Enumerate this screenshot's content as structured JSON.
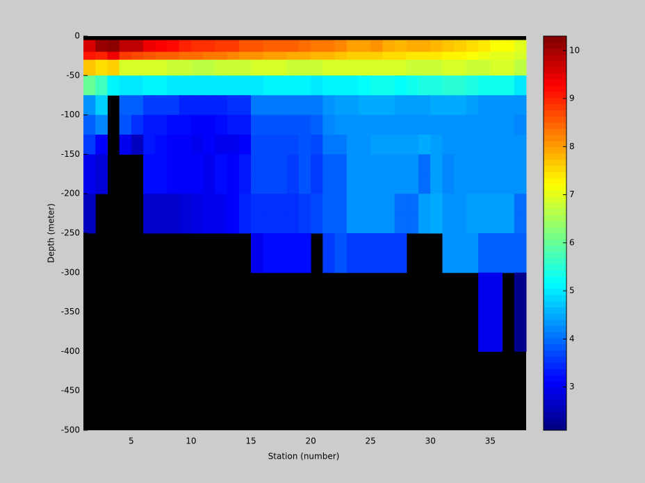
{
  "chart_data": {
    "type": "heatmap",
    "colormap": "jet",
    "xlabel": "Station (number)",
    "ylabel": "Depth (meter)",
    "x": [
      1,
      2,
      3,
      4,
      5,
      6,
      7,
      8,
      9,
      10,
      11,
      12,
      13,
      14,
      15,
      16,
      17,
      18,
      19,
      20,
      21,
      22,
      23,
      24,
      25,
      26,
      27,
      28,
      29,
      30,
      31,
      32,
      33,
      34,
      35,
      36,
      37,
      38
    ],
    "y": [
      0,
      -5,
      -20,
      -30,
      -50,
      -75,
      -100,
      -125,
      -150,
      -175,
      -200,
      -225,
      -250,
      -300,
      -400,
      -500
    ],
    "xlim": [
      1,
      38
    ],
    "ylim": [
      -500,
      0
    ],
    "xticks": [
      5,
      10,
      15,
      20,
      25,
      30,
      35
    ],
    "yticks": [
      0,
      -50,
      -100,
      -150,
      -200,
      -250,
      -300,
      -350,
      -400,
      -450,
      -500
    ],
    "clim": [
      2.1,
      10.3
    ],
    "cticks": [
      3,
      4,
      5,
      6,
      7,
      8,
      9,
      10
    ],
    "z": [
      [
        null,
        null,
        null,
        null,
        null,
        null,
        null,
        null,
        null,
        null,
        null,
        null,
        null,
        null,
        null,
        null,
        null,
        null,
        null,
        null,
        null,
        null,
        null,
        null,
        null,
        null,
        null,
        null,
        null,
        null,
        null,
        null,
        null,
        null,
        null,
        null,
        null
      ],
      [
        9.6,
        10.1,
        10.2,
        9.8,
        9.8,
        9.4,
        9.3,
        9.2,
        9.0,
        8.9,
        8.9,
        8.8,
        8.8,
        8.6,
        8.6,
        8.5,
        8.5,
        8.5,
        8.4,
        8.3,
        8.3,
        8.2,
        8.0,
        8.0,
        8.1,
        7.9,
        7.8,
        7.9,
        7.9,
        7.8,
        7.7,
        7.6,
        7.5,
        7.4,
        7.2,
        7.2,
        7.0
      ],
      [
        9.1,
        9.0,
        9.4,
        8.8,
        8.7,
        8.6,
        8.5,
        8.5,
        8.4,
        8.4,
        8.3,
        8.3,
        8.2,
        8.1,
        8.1,
        8.0,
        8.0,
        7.9,
        7.9,
        7.8,
        7.8,
        7.7,
        7.6,
        7.6,
        7.6,
        7.5,
        7.5,
        7.4,
        7.4,
        7.4,
        7.3,
        7.3,
        7.2,
        7.1,
        7.0,
        7.0,
        6.9
      ],
      [
        7.7,
        7.5,
        7.6,
        6.9,
        6.9,
        6.9,
        6.9,
        6.8,
        6.8,
        6.7,
        6.7,
        6.8,
        6.8,
        6.8,
        6.9,
        6.9,
        6.9,
        6.8,
        6.8,
        6.8,
        6.9,
        6.9,
        6.9,
        6.9,
        6.9,
        6.9,
        6.9,
        6.8,
        6.8,
        6.8,
        6.9,
        6.9,
        6.8,
        6.8,
        6.9,
        6.9,
        6.7
      ],
      [
        6.0,
        5.7,
        5.1,
        5.0,
        5.0,
        5.1,
        5.1,
        5.0,
        5.0,
        5.0,
        5.0,
        5.0,
        5.0,
        5.0,
        5.0,
        5.1,
        5.1,
        5.1,
        5.1,
        5.0,
        5.1,
        5.1,
        5.1,
        5.2,
        5.3,
        5.3,
        5.2,
        5.3,
        5.4,
        5.4,
        5.5,
        5.5,
        5.4,
        5.3,
        5.3,
        5.3,
        5.0
      ],
      [
        4.3,
        4.8,
        null,
        3.9,
        3.9,
        3.6,
        3.6,
        3.6,
        3.4,
        3.4,
        3.4,
        3.4,
        3.5,
        3.5,
        4.1,
        4.1,
        4.1,
        4.1,
        4.1,
        4.1,
        4.3,
        4.4,
        4.4,
        4.5,
        4.5,
        4.5,
        4.4,
        4.4,
        4.4,
        4.5,
        4.5,
        4.5,
        4.4,
        4.3,
        4.3,
        4.3,
        4.3
      ],
      [
        3.9,
        4.2,
        null,
        3.8,
        3.5,
        3.3,
        3.3,
        3.2,
        3.2,
        3.1,
        3.1,
        3.2,
        3.3,
        3.3,
        3.8,
        3.8,
        3.8,
        3.8,
        3.8,
        3.9,
        4.2,
        4.3,
        4.3,
        4.3,
        4.3,
        4.3,
        4.3,
        4.3,
        4.3,
        4.3,
        4.3,
        4.3,
        4.3,
        4.3,
        4.3,
        4.3,
        4.2
      ],
      [
        3.6,
        3.1,
        null,
        3.0,
        2.6,
        3.3,
        3.2,
        3.1,
        3.1,
        3.0,
        3.1,
        3.0,
        3.0,
        3.1,
        3.7,
        3.7,
        3.7,
        3.7,
        3.8,
        3.7,
        4.1,
        4.1,
        4.3,
        4.3,
        4.4,
        4.4,
        4.4,
        4.4,
        4.5,
        4.4,
        4.3,
        4.3,
        4.3,
        4.3,
        4.3,
        4.3,
        4.3
      ],
      [
        3.0,
        2.8,
        null,
        null,
        null,
        3.2,
        3.2,
        3.1,
        3.1,
        3.1,
        3.0,
        3.2,
        3.1,
        3.3,
        3.7,
        3.7,
        3.7,
        3.6,
        3.8,
        3.6,
        3.9,
        3.9,
        4.3,
        4.3,
        4.3,
        4.3,
        4.3,
        4.3,
        4.0,
        4.4,
        4.2,
        4.3,
        4.3,
        4.3,
        4.3,
        4.3,
        4.3
      ],
      [
        3.0,
        2.8,
        null,
        null,
        null,
        3.2,
        3.2,
        3.1,
        3.1,
        3.1,
        3.0,
        3.2,
        3.1,
        3.3,
        3.7,
        3.7,
        3.7,
        3.6,
        3.8,
        3.6,
        3.9,
        3.9,
        4.3,
        4.3,
        4.3,
        4.3,
        4.3,
        4.3,
        4.0,
        4.4,
        4.2,
        4.3,
        4.3,
        4.3,
        4.3,
        4.3,
        4.3
      ],
      [
        2.6,
        null,
        null,
        null,
        null,
        2.7,
        2.7,
        2.7,
        2.8,
        2.9,
        3.0,
        3.0,
        3.1,
        3.4,
        3.5,
        3.5,
        3.5,
        3.5,
        3.6,
        3.7,
        3.9,
        3.9,
        4.3,
        4.3,
        4.3,
        4.3,
        4.0,
        4.0,
        4.4,
        4.5,
        4.3,
        4.3,
        4.4,
        4.4,
        4.4,
        4.4,
        4.0
      ],
      [
        2.6,
        null,
        null,
        null,
        null,
        2.7,
        2.7,
        2.7,
        2.8,
        2.9,
        3.0,
        3.0,
        3.1,
        3.4,
        3.5,
        3.5,
        3.5,
        3.5,
        3.6,
        3.7,
        3.9,
        3.9,
        4.3,
        4.3,
        4.3,
        4.3,
        4.0,
        4.0,
        4.4,
        4.5,
        4.3,
        4.3,
        4.4,
        4.4,
        4.4,
        4.4,
        4.0
      ],
      [
        null,
        null,
        null,
        null,
        null,
        null,
        null,
        null,
        null,
        null,
        null,
        null,
        null,
        null,
        3.0,
        3.2,
        3.2,
        3.2,
        3.2,
        null,
        3.6,
        3.8,
        3.6,
        3.6,
        3.6,
        3.6,
        3.6,
        null,
        null,
        null,
        4.3,
        4.3,
        4.3,
        3.9,
        3.9,
        3.9,
        3.9
      ],
      [
        null,
        null,
        null,
        null,
        null,
        null,
        null,
        null,
        null,
        null,
        null,
        null,
        null,
        null,
        null,
        null,
        null,
        null,
        null,
        null,
        null,
        null,
        null,
        null,
        null,
        null,
        null,
        null,
        null,
        null,
        null,
        null,
        null,
        3.0,
        3.0,
        null,
        2.2
      ],
      [
        null,
        null,
        null,
        null,
        null,
        null,
        null,
        null,
        null,
        null,
        null,
        null,
        null,
        null,
        null,
        null,
        null,
        null,
        null,
        null,
        null,
        null,
        null,
        null,
        null,
        null,
        null,
        null,
        null,
        null,
        null,
        null,
        null,
        null,
        null,
        null,
        null
      ]
    ]
  }
}
